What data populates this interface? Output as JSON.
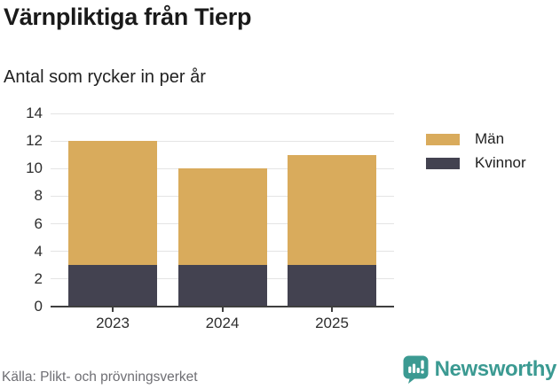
{
  "title": "Värnpliktiga från Tierp",
  "subtitle": "Antal som rycker in per år",
  "source": "Källa: Plikt- och prövningsverket",
  "brand": {
    "name": "Newsworthy",
    "color": "#3b9a92",
    "icon": "bar-chart-speech-bubble-icon"
  },
  "colors": {
    "man_bar": "#d9ab5c",
    "kvinnor_bar": "#434250",
    "gridline": "#e4e4e4",
    "axis": "#3f3f3f",
    "tick_text": "#2e2e2e",
    "source_text": "#6e6e73"
  },
  "chart_data": {
    "type": "bar",
    "stacked": true,
    "title": "Värnpliktiga från Tierp",
    "subtitle": "Antal som rycker in per år",
    "categories": [
      "2023",
      "2024",
      "2025"
    ],
    "series": [
      {
        "name": "Kvinnor",
        "color": "#434250",
        "values": [
          3,
          3,
          3
        ]
      },
      {
        "name": "Män",
        "color": "#d9ab5c",
        "values": [
          9,
          7,
          8
        ]
      }
    ],
    "totals": [
      12,
      10,
      11
    ],
    "xlabel": "",
    "ylabel": "",
    "ylim": [
      0,
      14
    ],
    "yticks": [
      0,
      2,
      4,
      6,
      8,
      10,
      12,
      14
    ],
    "grid": true,
    "legend_position": "right",
    "legend": [
      {
        "label": "Män",
        "color": "#d9ab5c"
      },
      {
        "label": "Kvinnor",
        "color": "#434250"
      }
    ]
  }
}
